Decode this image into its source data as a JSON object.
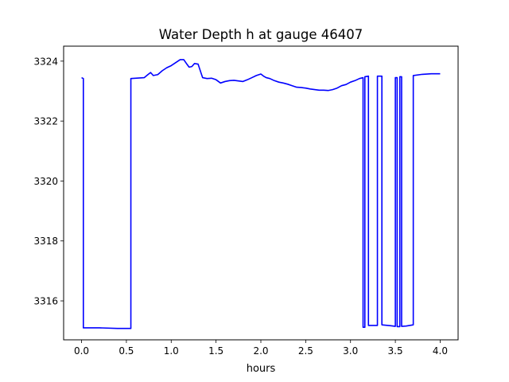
{
  "chart_data": {
    "type": "line",
    "title": "Water Depth h at gauge 46407",
    "xlabel": "hours",
    "ylabel": "",
    "xlim": [
      -0.2,
      4.2
    ],
    "ylim": [
      3314.7,
      3324.5
    ],
    "grid": false,
    "xticks": [
      0.0,
      0.5,
      1.0,
      1.5,
      2.0,
      2.5,
      3.0,
      3.5,
      4.0
    ],
    "xtick_labels": [
      "0.0",
      "0.5",
      "1.0",
      "1.5",
      "2.0",
      "2.5",
      "3.0",
      "3.5",
      "4.0"
    ],
    "yticks": [
      3316,
      3318,
      3320,
      3322,
      3324
    ],
    "ytick_labels": [
      "3316",
      "3318",
      "3320",
      "3322",
      "3324"
    ],
    "series": [
      {
        "color": "#0000ff",
        "x": [
          0.0,
          0.02,
          0.02,
          0.2,
          0.4,
          0.55,
          0.55,
          0.6,
          0.7,
          0.74,
          0.77,
          0.8,
          0.85,
          0.9,
          0.95,
          1.0,
          1.05,
          1.1,
          1.14,
          1.17,
          1.2,
          1.23,
          1.26,
          1.3,
          1.35,
          1.4,
          1.45,
          1.5,
          1.55,
          1.6,
          1.65,
          1.7,
          1.75,
          1.8,
          1.85,
          1.9,
          1.95,
          2.0,
          2.03,
          2.06,
          2.1,
          2.15,
          2.2,
          2.25,
          2.3,
          2.35,
          2.4,
          2.45,
          2.5,
          2.55,
          2.6,
          2.65,
          2.7,
          2.75,
          2.8,
          2.85,
          2.9,
          2.95,
          3.0,
          3.05,
          3.1,
          3.14,
          3.14,
          3.16,
          3.16,
          3.2,
          3.2,
          3.3,
          3.3,
          3.35,
          3.35,
          3.45,
          3.5,
          3.5,
          3.52,
          3.52,
          3.55,
          3.55,
          3.57,
          3.57,
          3.62,
          3.7,
          3.7,
          3.8,
          3.9,
          4.0
        ],
        "y": [
          3323.45,
          3323.42,
          3315.1,
          3315.1,
          3315.08,
          3315.08,
          3323.42,
          3323.43,
          3323.45,
          3323.55,
          3323.62,
          3323.52,
          3323.55,
          3323.68,
          3323.78,
          3323.85,
          3323.95,
          3324.05,
          3324.05,
          3323.92,
          3323.8,
          3323.82,
          3323.92,
          3323.9,
          3323.45,
          3323.42,
          3323.43,
          3323.38,
          3323.27,
          3323.32,
          3323.35,
          3323.36,
          3323.34,
          3323.32,
          3323.38,
          3323.45,
          3323.52,
          3323.57,
          3323.5,
          3323.45,
          3323.42,
          3323.35,
          3323.3,
          3323.27,
          3323.23,
          3323.18,
          3323.13,
          3323.12,
          3323.1,
          3323.07,
          3323.05,
          3323.03,
          3323.03,
          3323.02,
          3323.05,
          3323.1,
          3323.18,
          3323.22,
          3323.3,
          3323.35,
          3323.42,
          3323.45,
          3315.12,
          3315.12,
          3323.48,
          3323.5,
          3315.18,
          3315.18,
          3323.5,
          3323.5,
          3315.2,
          3315.17,
          3315.15,
          3323.45,
          3323.45,
          3315.14,
          3315.14,
          3323.48,
          3323.48,
          3315.15,
          3315.16,
          3315.2,
          3323.52,
          3323.56,
          3323.58,
          3323.58
        ]
      }
    ]
  }
}
